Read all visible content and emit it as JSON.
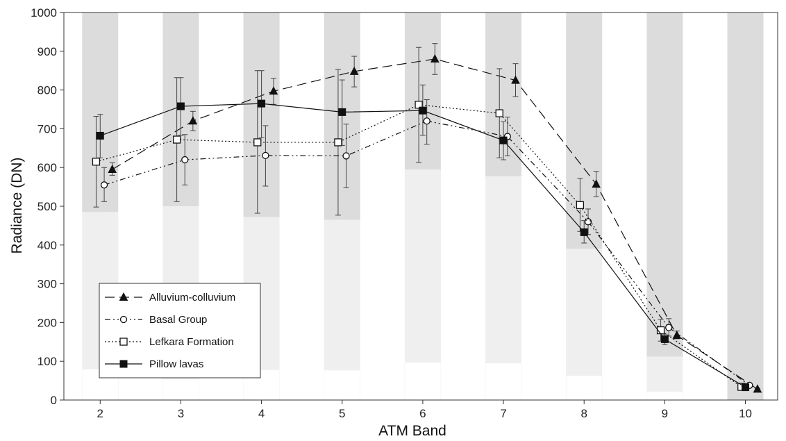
{
  "chart_data": {
    "type": "line",
    "xlabel": "ATM Band",
    "ylabel": "Radiance (DN)",
    "xlim": [
      1.55,
      10.4
    ],
    "ylim": [
      0,
      1000
    ],
    "x_ticks": [
      2,
      3,
      4,
      5,
      6,
      7,
      8,
      9,
      10
    ],
    "y_ticks": [
      0,
      100,
      200,
      300,
      400,
      500,
      600,
      700,
      800,
      900,
      1000
    ],
    "grid": false,
    "legend_position": "lower-left",
    "band_ranges": {
      "description_colors": {
        "min_max": "#dcdcdc",
        "mid": "#efefef",
        "low": "#ffffff"
      },
      "bands": [
        {
          "band": 2,
          "top": 1000,
          "mid": 485,
          "low": 80
        },
        {
          "band": 3,
          "top": 1000,
          "mid": 500,
          "low": 55
        },
        {
          "band": 4,
          "top": 1000,
          "mid": 472,
          "low": 78
        },
        {
          "band": 5,
          "top": 1000,
          "mid": 465,
          "low": 77
        },
        {
          "band": 6,
          "top": 1000,
          "mid": 595,
          "low": 97
        },
        {
          "band": 7,
          "top": 1000,
          "mid": 577,
          "low": 95
        },
        {
          "band": 8,
          "top": 1000,
          "mid": 390,
          "low": 63
        },
        {
          "band": 9,
          "top": 1000,
          "mid": 112,
          "low": 22
        },
        {
          "band": 10,
          "top": 1000,
          "mid": 0,
          "low": 0
        }
      ]
    },
    "series": [
      {
        "name": "Alluvium-colluvium",
        "marker": "triangle",
        "line_style": "dashed",
        "color": "#111111",
        "points": [
          {
            "x": 2.15,
            "y": 595,
            "err_low": 580,
            "err_high": 612
          },
          {
            "x": 3.15,
            "y": 720,
            "err_low": 695,
            "err_high": 745
          },
          {
            "x": 4.15,
            "y": 797,
            "err_low": 763,
            "err_high": 830
          },
          {
            "x": 5.15,
            "y": 848,
            "err_low": 808,
            "err_high": 887
          },
          {
            "x": 6.15,
            "y": 880,
            "err_low": 840,
            "err_high": 920
          },
          {
            "x": 7.15,
            "y": 825,
            "err_low": 783,
            "err_high": 868
          },
          {
            "x": 8.15,
            "y": 557,
            "err_low": 525,
            "err_high": 590
          },
          {
            "x": 9.15,
            "y": 167,
            "err_low": 158,
            "err_high": 178
          },
          {
            "x": 10.15,
            "y": 28,
            "err_low": 26,
            "err_high": 30
          }
        ]
      },
      {
        "name": "Basal Group",
        "marker": "circle-open",
        "line_style": "dashdotdot",
        "color": "#111111",
        "points": [
          {
            "x": 2.05,
            "y": 555,
            "err_low": 512,
            "err_high": 600
          },
          {
            "x": 3.05,
            "y": 620,
            "err_low": 555,
            "err_high": 685
          },
          {
            "x": 4.05,
            "y": 631,
            "err_low": 552,
            "err_high": 708
          },
          {
            "x": 5.05,
            "y": 630,
            "err_low": 548,
            "err_high": 712
          },
          {
            "x": 6.05,
            "y": 720,
            "err_low": 660,
            "err_high": 775
          },
          {
            "x": 7.05,
            "y": 680,
            "err_low": 630,
            "err_high": 730
          },
          {
            "x": 8.05,
            "y": 460,
            "err_low": 427,
            "err_high": 493
          },
          {
            "x": 9.05,
            "y": 187,
            "err_low": 165,
            "err_high": 210
          },
          {
            "x": 10.05,
            "y": 38,
            "err_low": 35,
            "err_high": 41
          }
        ]
      },
      {
        "name": "Lefkara Formation",
        "marker": "square-open",
        "line_style": "dotted",
        "color": "#111111",
        "points": [
          {
            "x": 1.95,
            "y": 615,
            "err_low": 498,
            "err_high": 732
          },
          {
            "x": 2.95,
            "y": 672,
            "err_low": 512,
            "err_high": 832
          },
          {
            "x": 3.95,
            "y": 665,
            "err_low": 482,
            "err_high": 850
          },
          {
            "x": 4.95,
            "y": 665,
            "err_low": 477,
            "err_high": 853
          },
          {
            "x": 5.95,
            "y": 762,
            "err_low": 613,
            "err_high": 910
          },
          {
            "x": 6.95,
            "y": 740,
            "err_low": 625,
            "err_high": 855
          },
          {
            "x": 7.95,
            "y": 503,
            "err_low": 435,
            "err_high": 572
          },
          {
            "x": 8.95,
            "y": 180,
            "err_low": 152,
            "err_high": 208
          },
          {
            "x": 9.95,
            "y": 34,
            "err_low": 33,
            "err_high": 35
          }
        ]
      },
      {
        "name": "Pillow lavas",
        "marker": "square-filled",
        "line_style": "solid",
        "color": "#111111",
        "points": [
          {
            "x": 2.0,
            "y": 682,
            "err_low": 625,
            "err_high": 737
          },
          {
            "x": 3.0,
            "y": 758,
            "err_low": 683,
            "err_high": 832
          },
          {
            "x": 4.0,
            "y": 765,
            "err_low": 677,
            "err_high": 850
          },
          {
            "x": 5.0,
            "y": 743,
            "err_low": 657,
            "err_high": 826
          },
          {
            "x": 6.0,
            "y": 747,
            "err_low": 683,
            "err_high": 813
          },
          {
            "x": 7.0,
            "y": 670,
            "err_low": 620,
            "err_high": 718
          },
          {
            "x": 8.0,
            "y": 433,
            "err_low": 405,
            "err_high": 463
          },
          {
            "x": 9.0,
            "y": 157,
            "err_low": 143,
            "err_high": 170
          },
          {
            "x": 10.0,
            "y": 33,
            "err_low": 31,
            "err_high": 35
          }
        ]
      }
    ]
  }
}
